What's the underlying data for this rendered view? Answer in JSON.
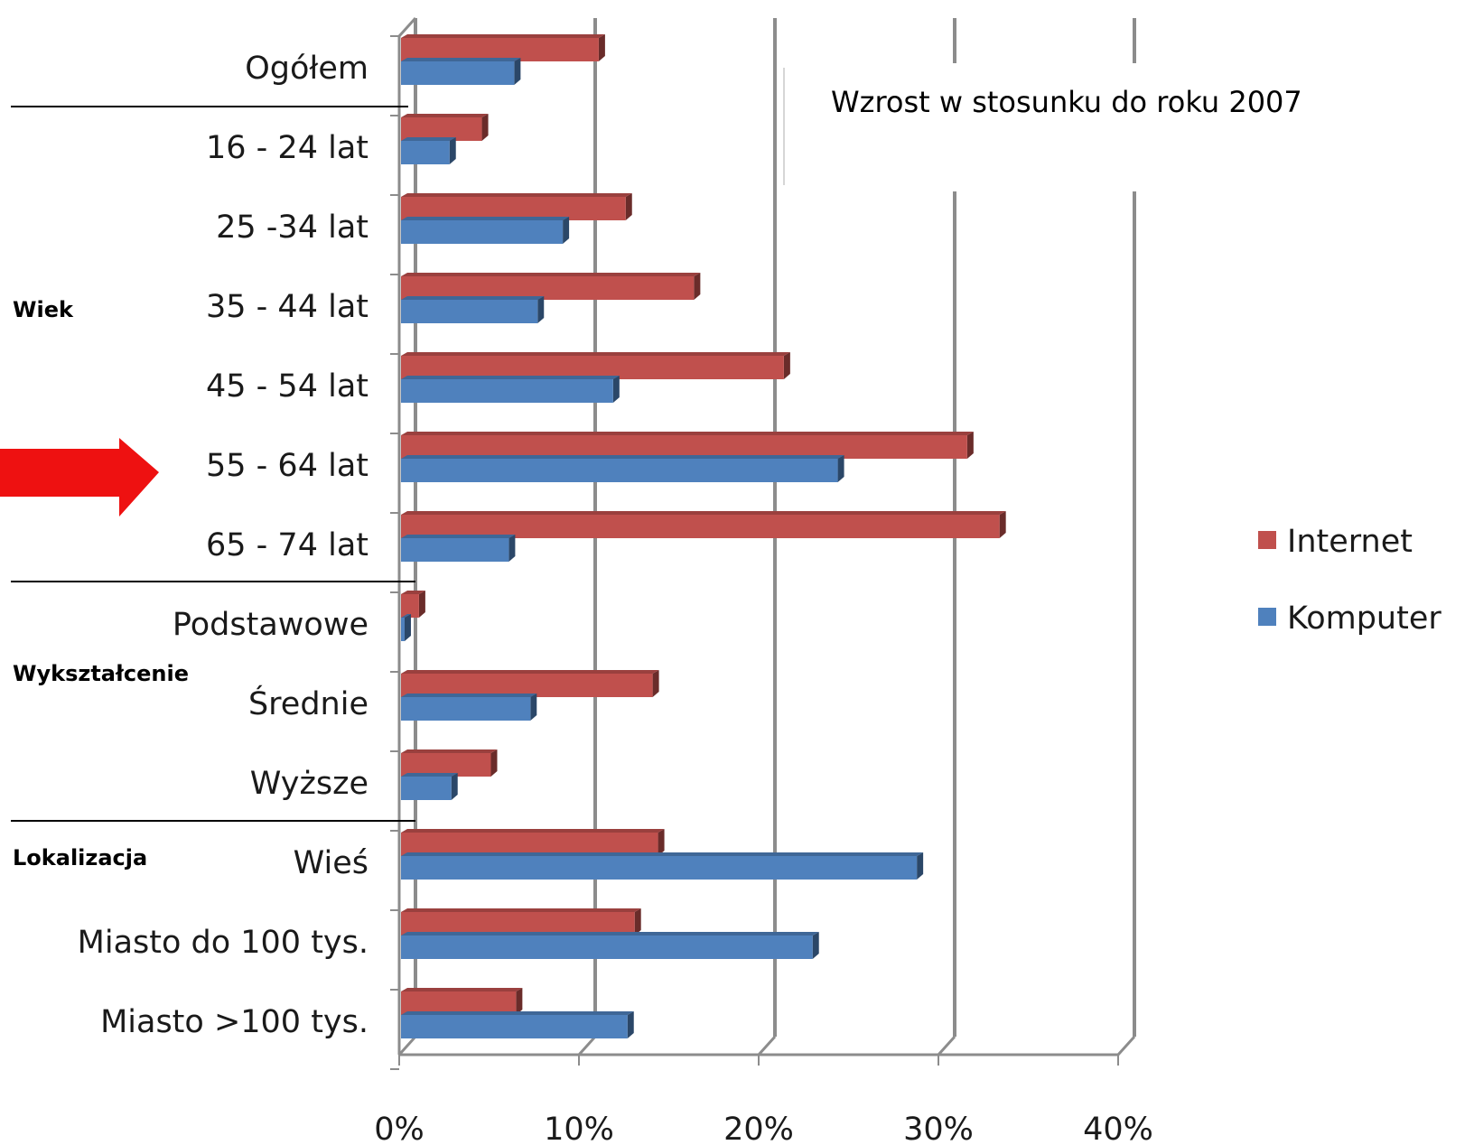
{
  "chart_data": {
    "type": "bar",
    "orientation": "horizontal",
    "title": "",
    "annotation": "Wzrost w stosunku do roku 2007",
    "xlabel": "",
    "ylabel": "",
    "xlim": [
      0,
      40
    ],
    "x_ticks": [
      "0%",
      "10%",
      "20%",
      "30%",
      "40%"
    ],
    "grid": true,
    "legend_position": "right",
    "categories": [
      "Ogółem",
      "16 - 24 lat",
      "25 -34 lat",
      "35 - 44 lat",
      "45 - 54 lat",
      "55 - 64 lat",
      "65 - 74 lat",
      "Podstawowe",
      "Średnie",
      "Wyższe",
      "Wieś",
      "Miasto do 100 tys.",
      "Miasto >100 tys."
    ],
    "groups": [
      {
        "label": "Wiek"
      },
      {
        "label": "Wykształcenie"
      },
      {
        "label": "Lokalizacja"
      }
    ],
    "highlighted_category": "55 - 64 lat",
    "series": [
      {
        "name": "Internet",
        "color": "#C0504D",
        "values": [
          11,
          4.5,
          12.5,
          16.3,
          21.3,
          31.5,
          33.3,
          1,
          14,
          5,
          14.3,
          13,
          6.4
        ]
      },
      {
        "name": "Komputer",
        "color": "#4F81BD",
        "values": [
          6.3,
          2.7,
          9,
          7.6,
          11.8,
          24.3,
          6,
          0.2,
          7.2,
          2.8,
          28.7,
          22.9,
          12.6
        ]
      }
    ]
  }
}
